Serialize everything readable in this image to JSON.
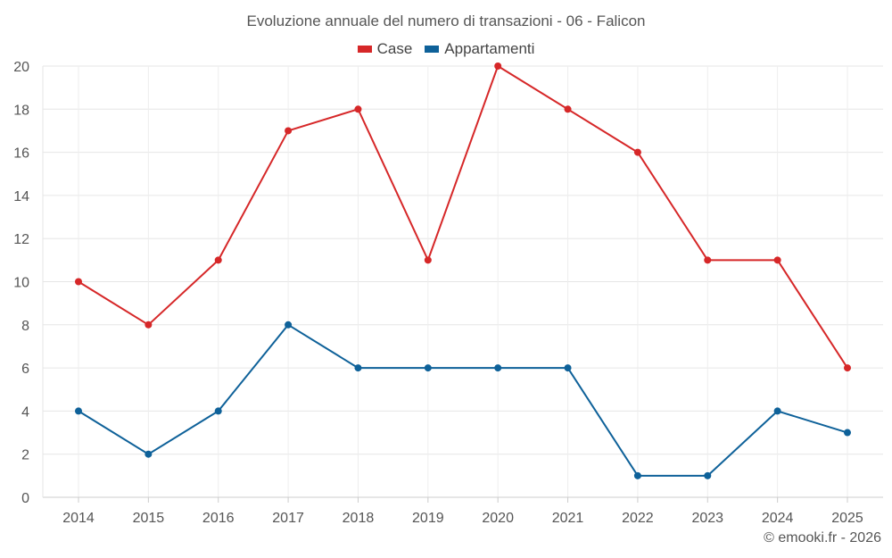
{
  "chart_data": {
    "type": "line",
    "title": "Evoluzione annuale del numero di transazioni - 06 - Falicon",
    "x": [
      "2014",
      "2015",
      "2016",
      "2017",
      "2018",
      "2019",
      "2020",
      "2021",
      "2022",
      "2023",
      "2024",
      "2025"
    ],
    "ylim": [
      0,
      20
    ],
    "yticks": [
      0,
      2,
      4,
      6,
      8,
      10,
      12,
      14,
      16,
      18,
      20
    ],
    "grid": true,
    "legend_position": "top-center",
    "series": [
      {
        "name": "Case",
        "color": "#d62728",
        "values": [
          10,
          8,
          11,
          17,
          18,
          11,
          20,
          18,
          16,
          11,
          11,
          6
        ]
      },
      {
        "name": "Appartamenti",
        "color": "#0e6199",
        "values": [
          4,
          2,
          4,
          8,
          6,
          6,
          6,
          6,
          1,
          1,
          4,
          3
        ]
      }
    ]
  },
  "footer": {
    "credit": "© emooki.fr - 2026"
  }
}
